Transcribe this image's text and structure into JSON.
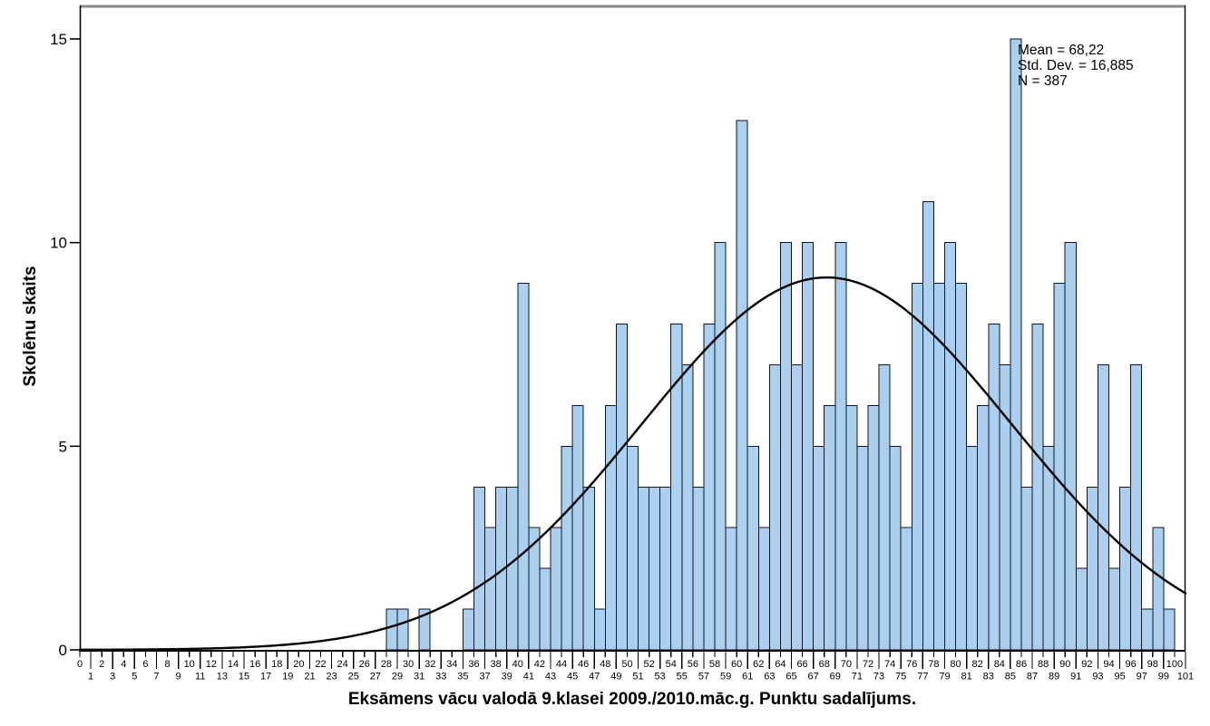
{
  "chart_data": {
    "type": "bar",
    "subtype": "histogram-with-normal-curve",
    "title": "Eksāmens vācu valodā 9.klasei 2009./2010.māc.g. Punktu sadalījums.",
    "xlabel": "",
    "ylabel": "Skolēnu skaits",
    "bin_width": 1,
    "scores_start_at": 0,
    "counts": [
      0,
      0,
      0,
      0,
      0,
      0,
      0,
      0,
      0,
      0,
      0,
      0,
      0,
      0,
      0,
      0,
      0,
      0,
      0,
      0,
      0,
      0,
      0,
      0,
      0,
      0,
      0,
      0,
      1,
      1,
      0,
      1,
      0,
      0,
      0,
      1,
      4,
      3,
      4,
      4,
      9,
      3,
      2,
      3,
      5,
      6,
      4,
      1,
      6,
      8,
      5,
      4,
      4,
      4,
      8,
      7,
      4,
      8,
      10,
      3,
      13,
      5,
      3,
      7,
      10,
      7,
      10,
      5,
      6,
      10,
      6,
      5,
      6,
      7,
      5,
      3,
      9,
      11,
      9,
      10,
      9,
      5,
      6,
      8,
      7,
      15,
      4,
      8,
      5,
      9,
      10,
      2,
      4,
      7,
      2,
      4,
      7,
      1,
      3,
      1,
      0
    ],
    "normal_curve": {
      "mean": 68.22,
      "sd": 16.885,
      "n": 387
    },
    "x_axis": {
      "start": 0,
      "end": 101,
      "tick_step": 1,
      "even_labels_row": "upper",
      "odd_labels_row": "lower"
    },
    "y_ticks": [
      0,
      5,
      10,
      15
    ],
    "ylim": [
      0,
      15.85
    ],
    "xlim": [
      0,
      101
    ],
    "grid": false,
    "legend": "none"
  },
  "stats_box": {
    "lines": [
      "Mean = 68,22",
      "Std. Dev. = 16,885",
      "N = 387"
    ]
  },
  "colors": {
    "background": "#FFFFFF",
    "bar_fill": "#ABCFEE",
    "bar_stroke": "#10121E",
    "curve": "#000000",
    "axis": "#000000",
    "frame_top": "#8A8A8A",
    "text": "#000000"
  }
}
